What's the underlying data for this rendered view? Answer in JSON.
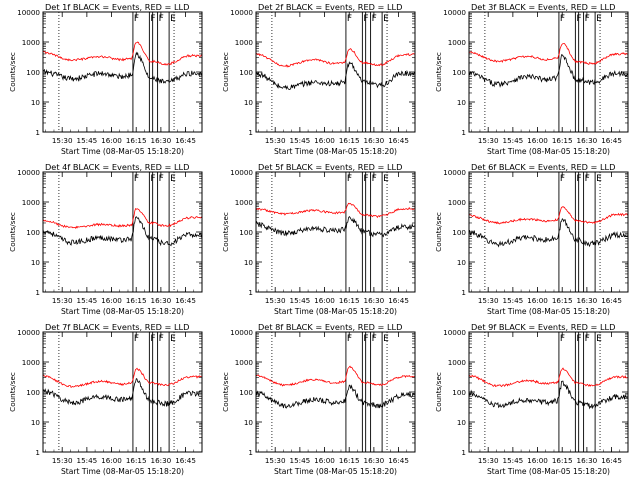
{
  "figure": {
    "xlabel": "Start Time (08-Mar-05 15:18:20)",
    "ylabel": "Counts/sec",
    "x_ticks": [
      "15:30",
      "15:45",
      "16:00",
      "16:15",
      "16:30",
      "16:45"
    ],
    "y_ticks": [
      "1",
      "10",
      "100",
      "1000",
      "10000"
    ],
    "event_marks": [
      {
        "time": "16:13",
        "letter": "F"
      },
      {
        "time": "16:23",
        "letter": "F"
      },
      {
        "time": "16:25",
        "letter": ""
      },
      {
        "time": "16:28",
        "letter": "F"
      },
      {
        "time": "16:35",
        "letter": "E"
      }
    ],
    "dotted_marks": [
      "15:28",
      "16:38"
    ],
    "colors": {
      "events": "#000000",
      "lld": "#ff0000"
    }
  },
  "chart_data": [
    {
      "type": "line",
      "title": "Det 1f BLACK = Events, RED = LLD",
      "x": [
        "15:18",
        "15:36",
        "15:54",
        "16:06",
        "16:12",
        "16:15",
        "16:24",
        "16:33",
        "16:48"
      ],
      "series": [
        {
          "name": "Events",
          "color": "#000000",
          "values": [
            100,
            60,
            90,
            70,
            80,
            420,
            60,
            45,
            90
          ]
        },
        {
          "name": "LLD",
          "color": "#ff0000",
          "values": [
            450,
            250,
            320,
            260,
            280,
            1000,
            230,
            180,
            350
          ]
        }
      ],
      "xlabel": "Start Time (08-Mar-05 15:18:20)",
      "ylabel": "Counts/sec",
      "ylim": [
        1,
        10000
      ],
      "yscale": "log"
    },
    {
      "type": "line",
      "title": "Det 2f BLACK = Events, RED = LLD",
      "x": [
        "15:18",
        "15:36",
        "15:54",
        "16:06",
        "16:12",
        "16:15",
        "16:24",
        "16:33",
        "16:48"
      ],
      "series": [
        {
          "name": "Events",
          "color": "#000000",
          "values": [
            90,
            30,
            45,
            40,
            45,
            200,
            45,
            35,
            90
          ]
        },
        {
          "name": "LLD",
          "color": "#ff0000",
          "values": [
            400,
            160,
            260,
            190,
            210,
            600,
            200,
            170,
            380
          ]
        }
      ],
      "xlabel": "Start Time (08-Mar-05 15:18:20)",
      "ylabel": "Counts/sec",
      "ylim": [
        1,
        10000
      ],
      "yscale": "log"
    },
    {
      "type": "line",
      "title": "Det 3f BLACK = Events, RED = LLD",
      "x": [
        "15:18",
        "15:36",
        "15:54",
        "16:06",
        "16:12",
        "16:15",
        "16:24",
        "16:33",
        "16:48"
      ],
      "series": [
        {
          "name": "Events",
          "color": "#000000",
          "values": [
            90,
            40,
            70,
            55,
            65,
            350,
            55,
            45,
            90
          ]
        },
        {
          "name": "LLD",
          "color": "#ff0000",
          "values": [
            450,
            230,
            330,
            260,
            290,
            900,
            220,
            190,
            400
          ]
        }
      ],
      "xlabel": "Start Time (08-Mar-05 15:18:20)",
      "ylabel": "Counts/sec",
      "ylim": [
        1,
        10000
      ],
      "yscale": "log"
    },
    {
      "type": "line",
      "title": "Det 4f BLACK = Events, RED = LLD",
      "x": [
        "15:18",
        "15:36",
        "15:54",
        "16:06",
        "16:12",
        "16:15",
        "16:24",
        "16:33",
        "16:48"
      ],
      "series": [
        {
          "name": "Events",
          "color": "#000000",
          "values": [
            110,
            45,
            65,
            55,
            60,
            300,
            60,
            40,
            80
          ]
        },
        {
          "name": "LLD",
          "color": "#ff0000",
          "values": [
            250,
            140,
            180,
            160,
            170,
            600,
            200,
            160,
            300
          ]
        }
      ],
      "xlabel": "Start Time (08-Mar-05 15:18:20)",
      "ylabel": "Counts/sec",
      "ylim": [
        1,
        10000
      ],
      "yscale": "log"
    },
    {
      "type": "line",
      "title": "Det 5f BLACK = Events, RED = LLD",
      "x": [
        "15:18",
        "15:36",
        "15:54",
        "16:06",
        "16:12",
        "16:15",
        "16:24",
        "16:33",
        "16:48"
      ],
      "series": [
        {
          "name": "Events",
          "color": "#000000",
          "values": [
            180,
            90,
            130,
            110,
            120,
            300,
            100,
            80,
            150
          ]
        },
        {
          "name": "LLD",
          "color": "#ff0000",
          "values": [
            600,
            400,
            520,
            430,
            460,
            900,
            380,
            330,
            600
          ]
        }
      ],
      "xlabel": "Start Time (08-Mar-05 15:18:20)",
      "ylabel": "Counts/sec",
      "ylim": [
        1,
        10000
      ],
      "yscale": "log"
    },
    {
      "type": "line",
      "title": "Det 6f BLACK = Events, RED = LLD",
      "x": [
        "15:18",
        "15:36",
        "15:54",
        "16:06",
        "16:12",
        "16:15",
        "16:24",
        "16:33",
        "16:48"
      ],
      "series": [
        {
          "name": "Events",
          "color": "#000000",
          "values": [
            100,
            40,
            65,
            55,
            60,
            250,
            55,
            40,
            80
          ]
        },
        {
          "name": "LLD",
          "color": "#ff0000",
          "values": [
            350,
            200,
            270,
            230,
            250,
            700,
            240,
            200,
            380
          ]
        }
      ],
      "xlabel": "Start Time (08-Mar-05 15:18:20)",
      "ylabel": "Counts/sec",
      "ylim": [
        1,
        10000
      ],
      "yscale": "log"
    },
    {
      "type": "line",
      "title": "Det 7f BLACK = Events, RED = LLD",
      "x": [
        "15:18",
        "15:36",
        "15:54",
        "16:06",
        "16:12",
        "16:15",
        "16:24",
        "16:33",
        "16:48"
      ],
      "series": [
        {
          "name": "Events",
          "color": "#000000",
          "values": [
            110,
            45,
            70,
            55,
            60,
            250,
            50,
            40,
            90
          ]
        },
        {
          "name": "LLD",
          "color": "#ff0000",
          "values": [
            350,
            150,
            230,
            180,
            200,
            600,
            200,
            170,
            320
          ]
        }
      ],
      "xlabel": "Start Time (08-Mar-05 15:18:20)",
      "ylabel": "Counts/sec",
      "ylim": [
        1,
        10000
      ],
      "yscale": "log"
    },
    {
      "type": "line",
      "title": "Det 8f BLACK = Events, RED = LLD",
      "x": [
        "15:18",
        "15:36",
        "15:54",
        "16:06",
        "16:12",
        "16:15",
        "16:24",
        "16:33",
        "16:48"
      ],
      "series": [
        {
          "name": "Events",
          "color": "#000000",
          "values": [
            90,
            35,
            55,
            45,
            50,
            150,
            45,
            35,
            80
          ]
        },
        {
          "name": "LLD",
          "color": "#ff0000",
          "values": [
            350,
            170,
            260,
            200,
            220,
            700,
            210,
            170,
            330
          ]
        }
      ],
      "xlabel": "Start Time (08-Mar-05 15:18:20)",
      "ylabel": "Counts/sec",
      "ylim": [
        1,
        10000
      ],
      "yscale": "log"
    },
    {
      "type": "line",
      "title": "Det 9f BLACK = Events, RED = LLD",
      "x": [
        "15:18",
        "15:36",
        "15:54",
        "16:06",
        "16:12",
        "16:15",
        "16:24",
        "16:33",
        "16:48"
      ],
      "series": [
        {
          "name": "Events",
          "color": "#000000",
          "values": [
            90,
            35,
            55,
            45,
            50,
            200,
            45,
            35,
            70
          ]
        },
        {
          "name": "LLD",
          "color": "#ff0000",
          "values": [
            350,
            160,
            240,
            190,
            210,
            600,
            200,
            160,
            320
          ]
        }
      ],
      "xlabel": "Start Time (08-Mar-05 15:18:20)",
      "ylabel": "Counts/sec",
      "ylim": [
        1,
        10000
      ],
      "yscale": "log"
    }
  ]
}
